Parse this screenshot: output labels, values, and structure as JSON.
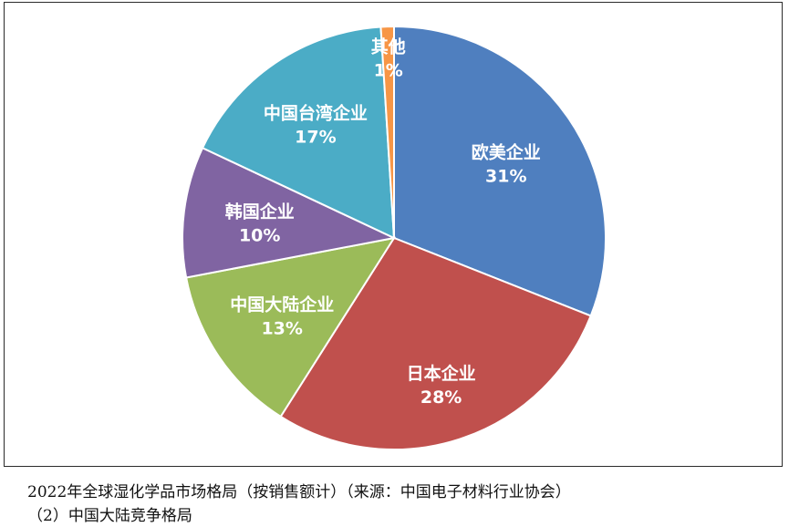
{
  "chart_data": {
    "type": "pie",
    "categories": [
      "欧美企业",
      "日本企业",
      "中国大陆企业",
      "韩国企业",
      "中国台湾企业",
      "其他"
    ],
    "values": [
      31,
      28,
      13,
      10,
      17,
      1
    ],
    "data_labels": [
      "31%",
      "28%",
      "13%",
      "10%",
      "17%",
      "1%"
    ],
    "colors": [
      "#4f7fbf",
      "#c0504d",
      "#9bbb59",
      "#8064a2",
      "#4bacc6",
      "#f79646"
    ],
    "label_colors": [
      "#ffffff",
      "#ffffff",
      "#ffffff",
      "#ffffff",
      "#ffffff",
      "#1a1a1a"
    ],
    "start_angle_deg": 0,
    "direction": "clockwise"
  },
  "caption": {
    "line1": "2022年全球湿化学品市场格局（按销售额计）（来源：中国电子材料行业协会）",
    "line2": "（2）中国大陆竞争格局"
  }
}
